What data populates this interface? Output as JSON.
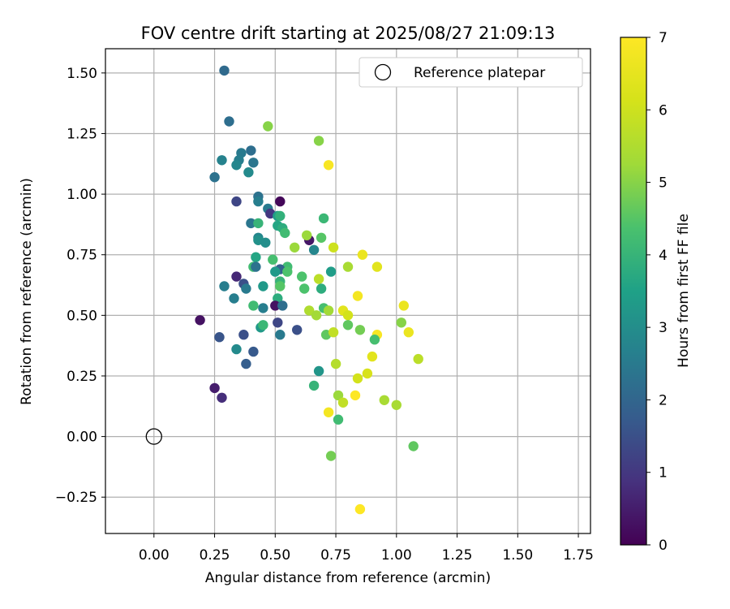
{
  "chart_data": {
    "type": "scatter",
    "title": "FOV centre drift starting at 2025/08/27 21:09:13",
    "xlabel": "Angular distance from reference (arcmin)",
    "ylabel": "Rotation from reference (arcmin)",
    "xlim": [
      -0.2,
      1.8
    ],
    "ylim": [
      -0.4,
      1.6
    ],
    "xticks": [
      "0.00",
      "0.25",
      "0.50",
      "0.75",
      "1.00",
      "1.25",
      "1.50",
      "1.75"
    ],
    "yticks": [
      "−0.25",
      "0.00",
      "0.25",
      "0.50",
      "0.75",
      "1.00",
      "1.25",
      "1.50"
    ],
    "grid": true,
    "legend": {
      "position": "top-right",
      "entries": [
        "Reference platepar"
      ]
    },
    "reference_point": {
      "x": 0.0,
      "y": 0.0,
      "label": "Reference platepar"
    },
    "colorbar": {
      "label": "Hours from first FF file",
      "min": 0,
      "max": 7,
      "ticks": [
        "0",
        "1",
        "2",
        "3",
        "4",
        "5",
        "6",
        "7"
      ],
      "colormap": "viridis"
    },
    "points": [
      {
        "x": 0.29,
        "y": 1.51,
        "h": 2.1
      },
      {
        "x": 0.31,
        "y": 1.3,
        "h": 2.2
      },
      {
        "x": 0.25,
        "y": 1.07,
        "h": 2.3
      },
      {
        "x": 0.28,
        "y": 1.14,
        "h": 2.7
      },
      {
        "x": 0.36,
        "y": 1.17,
        "h": 2.5
      },
      {
        "x": 0.35,
        "y": 1.14,
        "h": 2.6
      },
      {
        "x": 0.34,
        "y": 1.12,
        "h": 2.8
      },
      {
        "x": 0.4,
        "y": 1.18,
        "h": 2.2
      },
      {
        "x": 0.41,
        "y": 1.13,
        "h": 2.4
      },
      {
        "x": 0.39,
        "y": 1.09,
        "h": 2.9
      },
      {
        "x": 0.47,
        "y": 1.28,
        "h": 5.0
      },
      {
        "x": 0.34,
        "y": 0.97,
        "h": 1.3
      },
      {
        "x": 0.43,
        "y": 0.99,
        "h": 2.3
      },
      {
        "x": 0.43,
        "y": 0.97,
        "h": 2.6
      },
      {
        "x": 0.52,
        "y": 0.97,
        "h": 0.1
      },
      {
        "x": 0.47,
        "y": 0.94,
        "h": 2.5
      },
      {
        "x": 0.48,
        "y": 0.92,
        "h": 1.0
      },
      {
        "x": 0.51,
        "y": 0.91,
        "h": 3.4
      },
      {
        "x": 0.52,
        "y": 0.91,
        "h": 3.9
      },
      {
        "x": 0.4,
        "y": 0.88,
        "h": 2.4
      },
      {
        "x": 0.43,
        "y": 0.88,
        "h": 4.0
      },
      {
        "x": 0.51,
        "y": 0.87,
        "h": 3.6
      },
      {
        "x": 0.53,
        "y": 0.86,
        "h": 3.8
      },
      {
        "x": 0.54,
        "y": 0.84,
        "h": 4.2
      },
      {
        "x": 0.43,
        "y": 0.82,
        "h": 2.8
      },
      {
        "x": 0.43,
        "y": 0.81,
        "h": 3.1
      },
      {
        "x": 0.46,
        "y": 0.8,
        "h": 3.0
      },
      {
        "x": 0.64,
        "y": 0.81,
        "h": 0.4
      },
      {
        "x": 0.63,
        "y": 0.83,
        "h": 5.2
      },
      {
        "x": 0.58,
        "y": 0.78,
        "h": 5.2
      },
      {
        "x": 0.66,
        "y": 0.77,
        "h": 2.8
      },
      {
        "x": 0.69,
        "y": 0.82,
        "h": 4.5
      },
      {
        "x": 0.7,
        "y": 0.9,
        "h": 4.1
      },
      {
        "x": 0.74,
        "y": 0.78,
        "h": 6.0
      },
      {
        "x": 0.86,
        "y": 0.75,
        "h": 6.6
      },
      {
        "x": 0.68,
        "y": 1.22,
        "h": 5.0
      },
      {
        "x": 0.72,
        "y": 1.12,
        "h": 6.9
      },
      {
        "x": 0.42,
        "y": 0.74,
        "h": 3.6
      },
      {
        "x": 0.49,
        "y": 0.73,
        "h": 4.3
      },
      {
        "x": 0.55,
        "y": 0.7,
        "h": 4.2
      },
      {
        "x": 0.52,
        "y": 0.69,
        "h": 1.9
      },
      {
        "x": 0.41,
        "y": 0.7,
        "h": 4.2
      },
      {
        "x": 0.42,
        "y": 0.7,
        "h": 2.3
      },
      {
        "x": 0.55,
        "y": 0.68,
        "h": 4.4
      },
      {
        "x": 0.5,
        "y": 0.68,
        "h": 3.3
      },
      {
        "x": 0.73,
        "y": 0.68,
        "h": 3.4
      },
      {
        "x": 0.8,
        "y": 0.7,
        "h": 5.4
      },
      {
        "x": 0.92,
        "y": 0.7,
        "h": 6.4
      },
      {
        "x": 0.34,
        "y": 0.66,
        "h": 0.7
      },
      {
        "x": 0.37,
        "y": 0.63,
        "h": 1.5
      },
      {
        "x": 0.38,
        "y": 0.61,
        "h": 2.5
      },
      {
        "x": 0.29,
        "y": 0.62,
        "h": 2.6
      },
      {
        "x": 0.45,
        "y": 0.62,
        "h": 3.3
      },
      {
        "x": 0.52,
        "y": 0.64,
        "h": 4.0
      },
      {
        "x": 0.52,
        "y": 0.62,
        "h": 4.5
      },
      {
        "x": 0.61,
        "y": 0.66,
        "h": 4.4
      },
      {
        "x": 0.62,
        "y": 0.61,
        "h": 4.4
      },
      {
        "x": 0.68,
        "y": 0.65,
        "h": 5.7
      },
      {
        "x": 0.69,
        "y": 0.61,
        "h": 3.8
      },
      {
        "x": 0.33,
        "y": 0.57,
        "h": 2.6
      },
      {
        "x": 0.51,
        "y": 0.57,
        "h": 3.8
      },
      {
        "x": 0.5,
        "y": 0.54,
        "h": 0.3
      },
      {
        "x": 0.53,
        "y": 0.54,
        "h": 2.2
      },
      {
        "x": 0.41,
        "y": 0.54,
        "h": 4.2
      },
      {
        "x": 0.45,
        "y": 0.53,
        "h": 2.6
      },
      {
        "x": 0.64,
        "y": 0.52,
        "h": 5.5
      },
      {
        "x": 0.7,
        "y": 0.53,
        "h": 4.3
      },
      {
        "x": 0.67,
        "y": 0.5,
        "h": 5.3
      },
      {
        "x": 0.72,
        "y": 0.52,
        "h": 5.3
      },
      {
        "x": 0.84,
        "y": 0.58,
        "h": 6.8
      },
      {
        "x": 0.78,
        "y": 0.52,
        "h": 6.4
      },
      {
        "x": 0.8,
        "y": 0.5,
        "h": 6.1
      },
      {
        "x": 1.03,
        "y": 0.54,
        "h": 6.6
      },
      {
        "x": 1.02,
        "y": 0.47,
        "h": 5.0
      },
      {
        "x": 0.19,
        "y": 0.48,
        "h": 0.3
      },
      {
        "x": 0.27,
        "y": 0.41,
        "h": 1.6
      },
      {
        "x": 0.37,
        "y": 0.42,
        "h": 1.5
      },
      {
        "x": 0.51,
        "y": 0.47,
        "h": 1.3
      },
      {
        "x": 0.59,
        "y": 0.44,
        "h": 1.5
      },
      {
        "x": 0.44,
        "y": 0.45,
        "h": 3.3
      },
      {
        "x": 0.45,
        "y": 0.46,
        "h": 4.1
      },
      {
        "x": 0.52,
        "y": 0.42,
        "h": 2.5
      },
      {
        "x": 0.71,
        "y": 0.42,
        "h": 4.6
      },
      {
        "x": 0.74,
        "y": 0.43,
        "h": 5.8
      },
      {
        "x": 0.8,
        "y": 0.46,
        "h": 4.6
      },
      {
        "x": 0.85,
        "y": 0.44,
        "h": 4.8
      },
      {
        "x": 0.92,
        "y": 0.42,
        "h": 6.9
      },
      {
        "x": 0.91,
        "y": 0.4,
        "h": 4.3
      },
      {
        "x": 1.05,
        "y": 0.43,
        "h": 6.6
      },
      {
        "x": 0.34,
        "y": 0.36,
        "h": 2.9
      },
      {
        "x": 0.41,
        "y": 0.35,
        "h": 1.7
      },
      {
        "x": 0.38,
        "y": 0.3,
        "h": 1.8
      },
      {
        "x": 0.75,
        "y": 0.3,
        "h": 5.6
      },
      {
        "x": 0.9,
        "y": 0.33,
        "h": 6.4
      },
      {
        "x": 1.09,
        "y": 0.32,
        "h": 5.7
      },
      {
        "x": 0.68,
        "y": 0.27,
        "h": 3.2
      },
      {
        "x": 0.88,
        "y": 0.26,
        "h": 6.2
      },
      {
        "x": 0.84,
        "y": 0.24,
        "h": 6.1
      },
      {
        "x": 0.66,
        "y": 0.21,
        "h": 4.0
      },
      {
        "x": 0.25,
        "y": 0.2,
        "h": 0.5
      },
      {
        "x": 0.28,
        "y": 0.16,
        "h": 0.8
      },
      {
        "x": 0.76,
        "y": 0.17,
        "h": 5.2
      },
      {
        "x": 0.83,
        "y": 0.17,
        "h": 7.0
      },
      {
        "x": 0.78,
        "y": 0.14,
        "h": 5.8
      },
      {
        "x": 0.95,
        "y": 0.15,
        "h": 5.4
      },
      {
        "x": 1.0,
        "y": 0.13,
        "h": 5.4
      },
      {
        "x": 0.72,
        "y": 0.1,
        "h": 6.8
      },
      {
        "x": 0.76,
        "y": 0.07,
        "h": 4.2
      },
      {
        "x": 1.07,
        "y": -0.04,
        "h": 4.6
      },
      {
        "x": 0.73,
        "y": -0.08,
        "h": 4.8
      },
      {
        "x": 0.85,
        "y": -0.3,
        "h": 7.0
      }
    ]
  }
}
